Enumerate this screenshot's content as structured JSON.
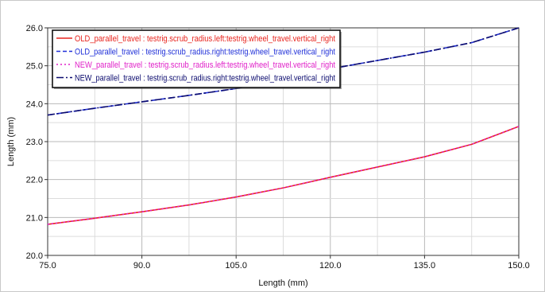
{
  "chart_data": {
    "type": "line",
    "title": "",
    "xlabel": "Length (mm)",
    "ylabel": "Length (mm)",
    "xlim": [
      75.0,
      150.0
    ],
    "ylim": [
      20.0,
      26.0
    ],
    "x_ticks": [
      "75.0",
      "90.0",
      "105.0",
      "120.0",
      "135.0",
      "150.0"
    ],
    "y_ticks": [
      "20.0",
      "21.0",
      "22.0",
      "23.0",
      "24.0",
      "25.0",
      "26.0"
    ],
    "grid": true,
    "legend_position": "top-left",
    "series": [
      {
        "name": "OLD_parallel_travel : testrig.scrub_radius.left:testrig.wheel_travel.vertical_right",
        "color": "#e8251e",
        "dash": "solid",
        "x": [
          75,
          82.5,
          90,
          97.5,
          105,
          112.5,
          120,
          127.5,
          135,
          142.5,
          150
        ],
        "y": [
          20.82,
          20.98,
          21.15,
          21.33,
          21.54,
          21.78,
          22.06,
          22.33,
          22.6,
          22.93,
          23.4
        ]
      },
      {
        "name": "OLD_parallel_travel : testrig.scrub_radius.right:testrig.wheel_travel.vertical_right",
        "color": "#1f2fd8",
        "dash": "dashed",
        "x": [
          75,
          82.5,
          90,
          97.5,
          105,
          112.5,
          120,
          127.5,
          135,
          142.5,
          150
        ],
        "y": [
          23.7,
          23.88,
          24.05,
          24.22,
          24.4,
          24.65,
          24.92,
          25.14,
          25.36,
          25.61,
          26.0
        ]
      },
      {
        "name": "NEW_parallel_travel : testrig.scrub_radius.left:testrig.wheel_travel.vertical_right",
        "color": "#e020c8",
        "dash": "dotted",
        "x": [
          75,
          82.5,
          90,
          97.5,
          105,
          112.5,
          120,
          127.5,
          135,
          142.5,
          150
        ],
        "y": [
          20.82,
          20.98,
          21.15,
          21.33,
          21.54,
          21.78,
          22.06,
          22.33,
          22.6,
          22.93,
          23.4
        ]
      },
      {
        "name": "NEW_parallel_travel : testrig.scrub_radius.right:testrig.wheel_travel.vertical_right",
        "color": "#0b0b6e",
        "dash": "dashdot",
        "x": [
          75,
          82.5,
          90,
          97.5,
          105,
          112.5,
          120,
          127.5,
          135,
          142.5,
          150
        ],
        "y": [
          23.7,
          23.88,
          24.05,
          24.22,
          24.4,
          24.65,
          24.92,
          25.14,
          25.36,
          25.61,
          26.0
        ]
      }
    ]
  }
}
